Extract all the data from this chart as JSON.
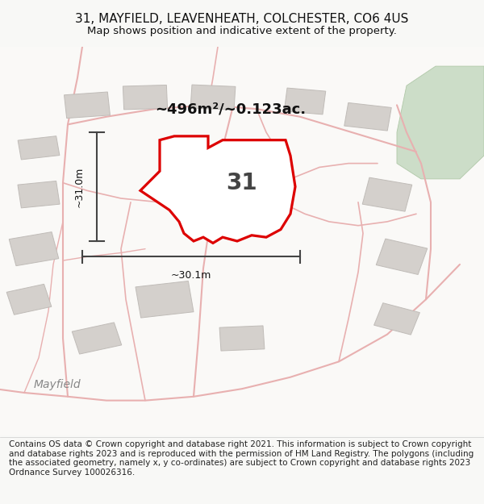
{
  "title_line1": "31, MAYFIELD, LEAVENHEATH, COLCHESTER, CO6 4US",
  "title_line2": "Map shows position and indicative extent of the property.",
  "footer_text": "Contains OS data © Crown copyright and database right 2021. This information is subject to Crown copyright and database rights 2023 and is reproduced with the permission of HM Land Registry. The polygons (including the associated geometry, namely x, y co-ordinates) are subject to Crown copyright and database rights 2023 Ordnance Survey 100026316.",
  "area_label": "~496m²/~0.123ac.",
  "number_label": "31",
  "dim_h_label": "~31.0m",
  "dim_w_label": "~30.1m",
  "map_bg": "#ffffff",
  "outer_bg": "#f5f2ee",
  "green_color": "#ccddc8",
  "road_line_color": "#e8b0b0",
  "building_color": "#d4d0cc",
  "building_edge": "#c0bcb8",
  "property_fill": "#ffffff",
  "property_edge": "#dd0000",
  "dim_color": "#444444",
  "street_label_color": "#888888",
  "street_label": "Mayfield",
  "title_fontsize": 11,
  "subtitle_fontsize": 9.5,
  "footer_fontsize": 7.5,
  "area_fontsize": 13,
  "number_fontsize": 20,
  "dim_fontsize": 9,
  "street_fontsize": 10,
  "title_color": "#111111",
  "footer_color": "#222222"
}
